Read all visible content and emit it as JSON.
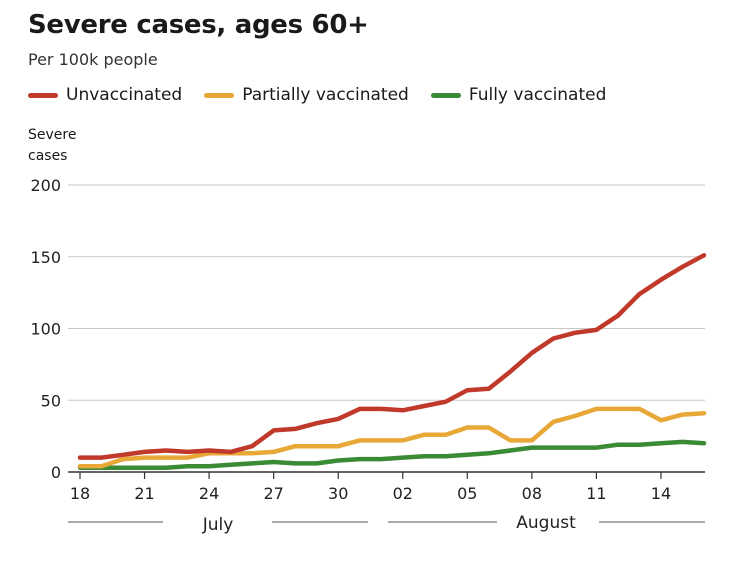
{
  "chart_data": {
    "type": "line",
    "title": "Severe cases, ages 60+",
    "subtitle": "Per 100k people",
    "ylabel": "Severe\ncases",
    "xlabel": "",
    "ylim": [
      0,
      200
    ],
    "y_ticks": [
      0,
      50,
      100,
      150,
      200
    ],
    "x_tick_labels": [
      "18",
      "21",
      "24",
      "27",
      "30",
      "02",
      "05",
      "08",
      "11",
      "14"
    ],
    "months": [
      "July",
      "August"
    ],
    "grid": true,
    "legend_position": "top",
    "x": [
      "Jul 18",
      "Jul 19",
      "Jul 20",
      "Jul 21",
      "Jul 22",
      "Jul 23",
      "Jul 24",
      "Jul 25",
      "Jul 26",
      "Jul 27",
      "Jul 28",
      "Jul 29",
      "Jul 30",
      "Jul 31",
      "Aug 01",
      "Aug 02",
      "Aug 03",
      "Aug 04",
      "Aug 05",
      "Aug 06",
      "Aug 07",
      "Aug 08",
      "Aug 09",
      "Aug 10",
      "Aug 11",
      "Aug 12",
      "Aug 13",
      "Aug 14",
      "Aug 15",
      "Aug 16"
    ],
    "series": [
      {
        "name": "Unvaccinated",
        "color": "#c0392b",
        "values": [
          10,
          10,
          12,
          14,
          15,
          14,
          15,
          14,
          18,
          29,
          30,
          34,
          37,
          44,
          44,
          43,
          46,
          49,
          57,
          58,
          70,
          83,
          93,
          97,
          99,
          109,
          124,
          134,
          143,
          151
        ]
      },
      {
        "name": "Partially vaccinated",
        "color": "#e8a838",
        "values": [
          4,
          4,
          9,
          10,
          10,
          10,
          13,
          13,
          13,
          14,
          18,
          18,
          18,
          22,
          22,
          22,
          26,
          26,
          31,
          31,
          22,
          22,
          35,
          39,
          44,
          44,
          44,
          36,
          40,
          41
        ]
      },
      {
        "name": "Fully vaccinated",
        "color": "#3a8a36",
        "values": [
          3,
          3,
          3,
          3,
          3,
          4,
          4,
          5,
          6,
          7,
          6,
          6,
          8,
          9,
          9,
          10,
          11,
          11,
          12,
          13,
          15,
          17,
          17,
          17,
          17,
          19,
          19,
          20,
          21,
          20
        ]
      }
    ]
  }
}
